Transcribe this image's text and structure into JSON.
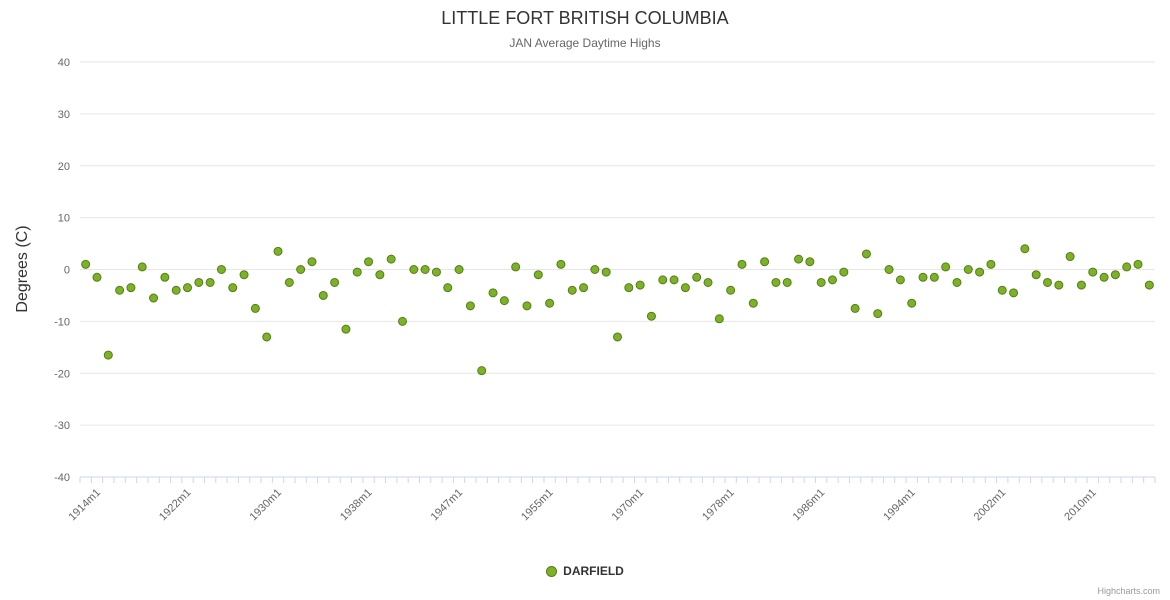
{
  "chart_data": {
    "type": "scatter",
    "title": "LITTLE FORT BRITISH COLUMBIA",
    "subtitle": "JAN Average Daytime Highs",
    "ylabel": "Degrees (C)",
    "xlabel": "",
    "ylim": [
      -40,
      40
    ],
    "yticks": [
      40,
      30,
      20,
      10,
      0,
      -10,
      -20,
      -30,
      -40
    ],
    "grid": true,
    "legend_position": "bottom",
    "series_name": "DARFIELD",
    "credit": "Highcharts.com",
    "colors": {
      "point_fill": "#7cb228",
      "point_border": "#567c16",
      "grid": "#e6e6e6",
      "axis_line": "#ccd6eb",
      "title_text": "#333333",
      "muted_text": "#666666"
    },
    "xtick_label_indices": [
      1,
      9,
      17,
      25,
      33,
      41,
      49,
      57,
      65,
      73,
      81,
      89
    ],
    "categories": [
      "1913m1",
      "1914m1",
      "1915m1",
      "1916m1",
      "1917m1",
      "1918m1",
      "1919m1",
      "1920m1",
      "1921m1",
      "1922m1",
      "1923m1",
      "1924m1",
      "1925m1",
      "1926m1",
      "1927m1",
      "1928m1",
      "1929m1",
      "1930m1",
      "1931m1",
      "1932m1",
      "1933m1",
      "1934m1",
      "1935m1",
      "1936m1",
      "1937m1",
      "1938m1",
      "1939m1",
      "1940m1",
      "1941m1",
      "1942m1",
      "1944m1",
      "1945m1",
      "1946m1",
      "1947m1",
      "1948m1",
      "1949m1",
      "1950m1",
      "1951m1",
      "1952m1",
      "1953m1",
      "1954m1",
      "1955m1",
      "1956m1",
      "1957m1",
      "1958m1",
      "1959m1",
      "1960m1",
      "1961m1",
      "1962m1",
      "1970m1",
      "1971m1",
      "1972m1",
      "1973m1",
      "1974m1",
      "1975m1",
      "1976m1",
      "1977m1",
      "1978m1",
      "1979m1",
      "1980m1",
      "1981m1",
      "1982m1",
      "1983m1",
      "1984m1",
      "1985m1",
      "1986m1",
      "1987m1",
      "1988m1",
      "1989m1",
      "1990m1",
      "1991m1",
      "1992m1",
      "1993m1",
      "1994m1",
      "1995m1",
      "1996m1",
      "1997m1",
      "1998m1",
      "1999m1",
      "2000m1",
      "2001m1",
      "2002m1",
      "2003m1",
      "2004m1",
      "2005m1",
      "2006m1",
      "2007m1",
      "2008m1",
      "2009m1",
      "2010m1",
      "2011m1",
      "2012m1",
      "2013m1",
      "2014m1",
      "2015m1"
    ],
    "values": [
      1,
      -1.5,
      -16.5,
      -4,
      -3.5,
      0.5,
      -5.5,
      -1.5,
      -4,
      -3.5,
      -2.5,
      -2.5,
      0,
      -3.5,
      -1,
      -7.5,
      -13,
      3.5,
      -2.5,
      0,
      1.5,
      -5,
      -2.5,
      -11.5,
      -0.5,
      1.5,
      -1,
      2,
      -10,
      0,
      0,
      -0.5,
      -3.5,
      0,
      -7,
      -19.5,
      -4.5,
      -6,
      0.5,
      -7,
      -1,
      -6.5,
      1,
      -4,
      -3.5,
      0,
      -0.5,
      -13,
      -3.5,
      -3,
      -9,
      -2,
      -2,
      -3.5,
      -1.5,
      -2.5,
      -9.5,
      -4,
      1,
      -6.5,
      1.5,
      -2.5,
      -2.5,
      2,
      1.5,
      -2.5,
      -2,
      -0.5,
      -7.5,
      3,
      -8.5,
      0,
      -2,
      -6.5,
      -1.5,
      -1.5,
      0.5,
      -2.5,
      0,
      -0.5,
      1,
      -4,
      -4.5,
      4,
      -1,
      -2.5,
      -3,
      2.5,
      -3,
      -0.5,
      -1.5,
      -1,
      0.5,
      1,
      -3
    ]
  }
}
